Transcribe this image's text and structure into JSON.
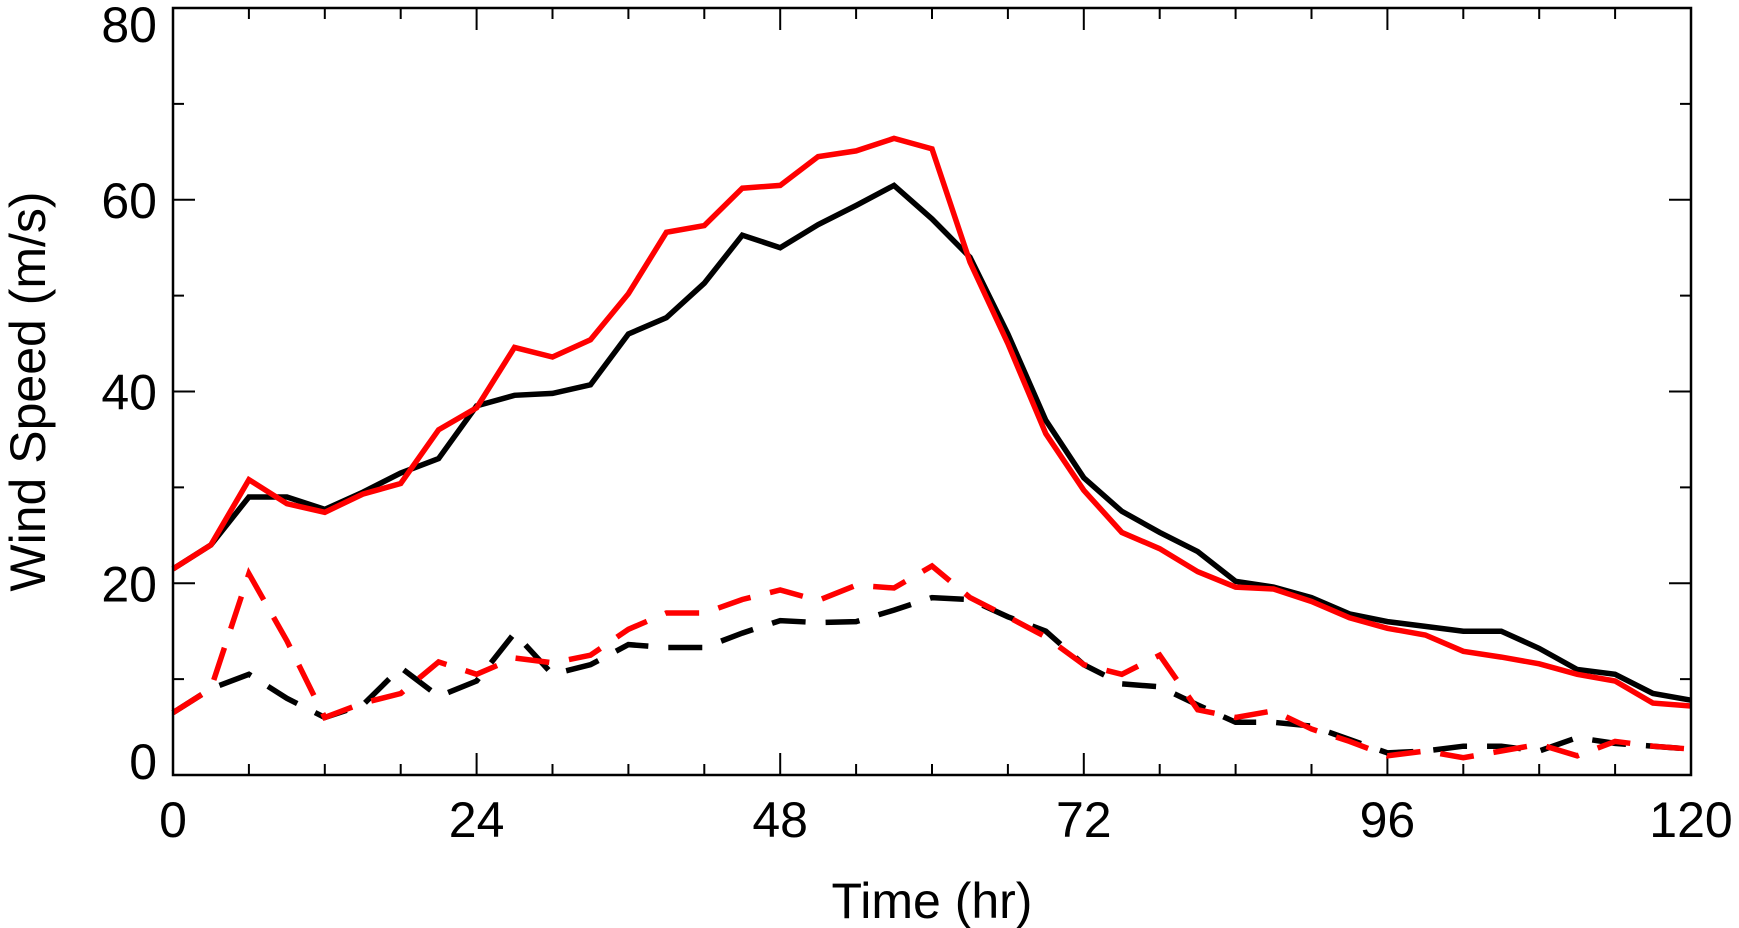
{
  "chart_data": {
    "type": "line",
    "title": "",
    "xlabel": "Time (hr)",
    "ylabel": "Wind Speed (m/s)",
    "xlim": [
      0,
      120
    ],
    "ylim": [
      0,
      80
    ],
    "x_ticks": [
      0,
      24,
      48,
      72,
      96,
      120
    ],
    "y_ticks": [
      0,
      20,
      40,
      60,
      80
    ],
    "x_minor_step": 6,
    "y_minor_step": 10,
    "grid": false,
    "x": [
      0,
      3,
      6,
      9,
      12,
      15,
      18,
      21,
      24,
      27,
      30,
      33,
      36,
      39,
      42,
      45,
      48,
      51,
      54,
      57,
      60,
      63,
      66,
      69,
      72,
      75,
      78,
      81,
      84,
      87,
      90,
      93,
      96,
      99,
      102,
      105,
      108,
      111,
      114,
      117,
      120
    ],
    "series": [
      {
        "color": "#000000",
        "dash": "solid",
        "values": [
          21.5,
          24.0,
          29.0,
          29.0,
          27.7,
          29.5,
          31.5,
          33.0,
          38.5,
          39.6,
          39.8,
          40.7,
          46.0,
          47.7,
          51.3,
          56.3,
          55.0,
          57.4,
          59.4,
          61.5,
          58.0,
          54.0,
          46.0,
          37.0,
          31.0,
          27.5,
          25.3,
          23.3,
          20.2,
          19.6,
          18.5,
          16.8,
          16.0,
          15.5,
          15.0,
          15.0,
          13.2,
          11.0,
          10.5,
          8.5,
          7.8
        ]
      },
      {
        "color": "#ff0000",
        "dash": "solid",
        "values": [
          21.5,
          24.0,
          30.8,
          28.3,
          27.4,
          29.3,
          30.4,
          36.0,
          38.3,
          44.6,
          43.6,
          45.4,
          50.2,
          56.6,
          57.3,
          61.2,
          61.5,
          64.5,
          65.1,
          66.4,
          65.3,
          53.5,
          45.0,
          35.6,
          29.7,
          25.3,
          23.6,
          21.2,
          19.6,
          19.4,
          18.1,
          16.4,
          15.3,
          14.6,
          12.9,
          12.3,
          11.6,
          10.5,
          9.8,
          7.5,
          7.2
        ]
      },
      {
        "color": "#000000",
        "dash": "dashed",
        "values": [
          6.5,
          9.0,
          10.5,
          8.0,
          6.0,
          7.3,
          11.2,
          8.2,
          9.8,
          14.8,
          10.5,
          11.5,
          13.6,
          13.3,
          13.3,
          14.8,
          16.1,
          15.9,
          16.0,
          17.2,
          18.5,
          18.3,
          16.5,
          15.0,
          11.5,
          9.5,
          9.2,
          7.3,
          5.5,
          5.5,
          5.1,
          3.7,
          2.3,
          2.5,
          3.0,
          3.0,
          2.5,
          3.9,
          3.3,
          3.0,
          2.7
        ]
      },
      {
        "color": "#ff0000",
        "dash": "dashed",
        "values": [
          6.5,
          9.0,
          21.0,
          14.0,
          6.0,
          7.5,
          8.5,
          11.8,
          10.5,
          12.2,
          11.7,
          12.5,
          15.2,
          16.9,
          16.9,
          18.3,
          19.3,
          18.2,
          19.8,
          19.5,
          21.8,
          18.5,
          16.5,
          14.4,
          11.5,
          10.5,
          12.5,
          6.8,
          6.0,
          6.7,
          4.8,
          3.5,
          2.0,
          2.5,
          1.8,
          2.5,
          3.2,
          2.0,
          3.5,
          3.0,
          2.7
        ]
      }
    ]
  }
}
